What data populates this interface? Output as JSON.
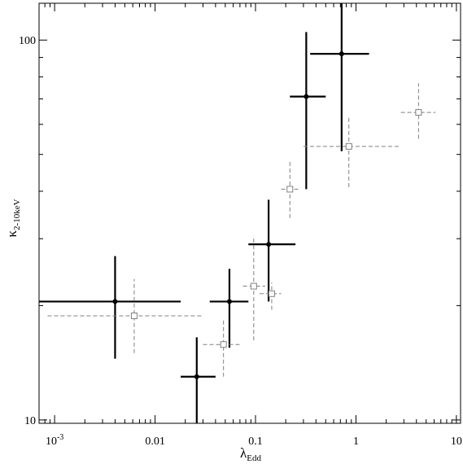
{
  "chart_data": {
    "type": "scatter",
    "title": "",
    "xlabel": {
      "main": "λ",
      "sub": "Edd"
    },
    "ylabel": {
      "main": "κ",
      "sub": "2-10keV"
    },
    "x_scale": "log",
    "y_scale": "log",
    "xlim": [
      0.0007,
      11
    ],
    "ylim": [
      9.8,
      125
    ],
    "x_major_ticks": [
      0.001,
      0.01,
      0.1,
      1,
      10
    ],
    "x_major_tick_labels": [
      "10-3",
      "0.01",
      "0.1",
      "1",
      "10"
    ],
    "y_major_ticks": [
      10,
      100
    ],
    "y_major_tick_labels": [
      "10",
      "100"
    ],
    "grid": false,
    "legend": "none",
    "series": [
      {
        "style": "solid-black-filled-circle",
        "color": "#000000",
        "points": [
          {
            "x": 0.004,
            "xlo": 0.0007,
            "xhi": 0.018,
            "y": 20.5,
            "ylo": 14.5,
            "yhi": 27
          },
          {
            "x": 0.026,
            "xlo": 0.018,
            "xhi": 0.04,
            "y": 13,
            "ylo": 9.8,
            "yhi": 16.5
          },
          {
            "x": 0.055,
            "xlo": 0.035,
            "xhi": 0.085,
            "y": 20.5,
            "ylo": 15.5,
            "yhi": 25
          },
          {
            "x": 0.135,
            "xlo": 0.085,
            "xhi": 0.25,
            "y": 29,
            "ylo": 20.5,
            "yhi": 38
          },
          {
            "x": 0.32,
            "xlo": 0.22,
            "xhi": 0.5,
            "y": 71,
            "ylo": 40.5,
            "yhi": 105
          },
          {
            "x": 0.72,
            "xlo": 0.35,
            "xhi": 1.35,
            "y": 92,
            "ylo": 51,
            "yhi": 125
          }
        ]
      },
      {
        "style": "dashed-gray-open-square",
        "color": "#808080",
        "points": [
          {
            "x": 0.0062,
            "xlo": 0.00085,
            "xhi": 0.03,
            "y": 18.8,
            "ylo": 15,
            "yhi": 23.5
          },
          {
            "x": 0.048,
            "xlo": 0.03,
            "xhi": 0.07,
            "y": 15.8,
            "ylo": 13,
            "yhi": 18.5
          },
          {
            "x": 0.096,
            "xlo": 0.075,
            "xhi": 0.125,
            "y": 22.5,
            "ylo": 16.2,
            "yhi": 30.5
          },
          {
            "x": 0.145,
            "xlo": 0.11,
            "xhi": 0.18,
            "y": 21.5,
            "ylo": 19.5,
            "yhi": 23
          },
          {
            "x": 0.22,
            "xlo": 0.18,
            "xhi": 0.27,
            "y": 40.5,
            "ylo": 34,
            "yhi": 48
          },
          {
            "x": 0.85,
            "xlo": 0.3,
            "xhi": 2.8,
            "y": 52.5,
            "ylo": 41,
            "yhi": 63
          },
          {
            "x": 4.2,
            "xlo": 2.8,
            "xhi": 6.2,
            "y": 64.5,
            "ylo": 55,
            "yhi": 77
          }
        ]
      }
    ]
  }
}
